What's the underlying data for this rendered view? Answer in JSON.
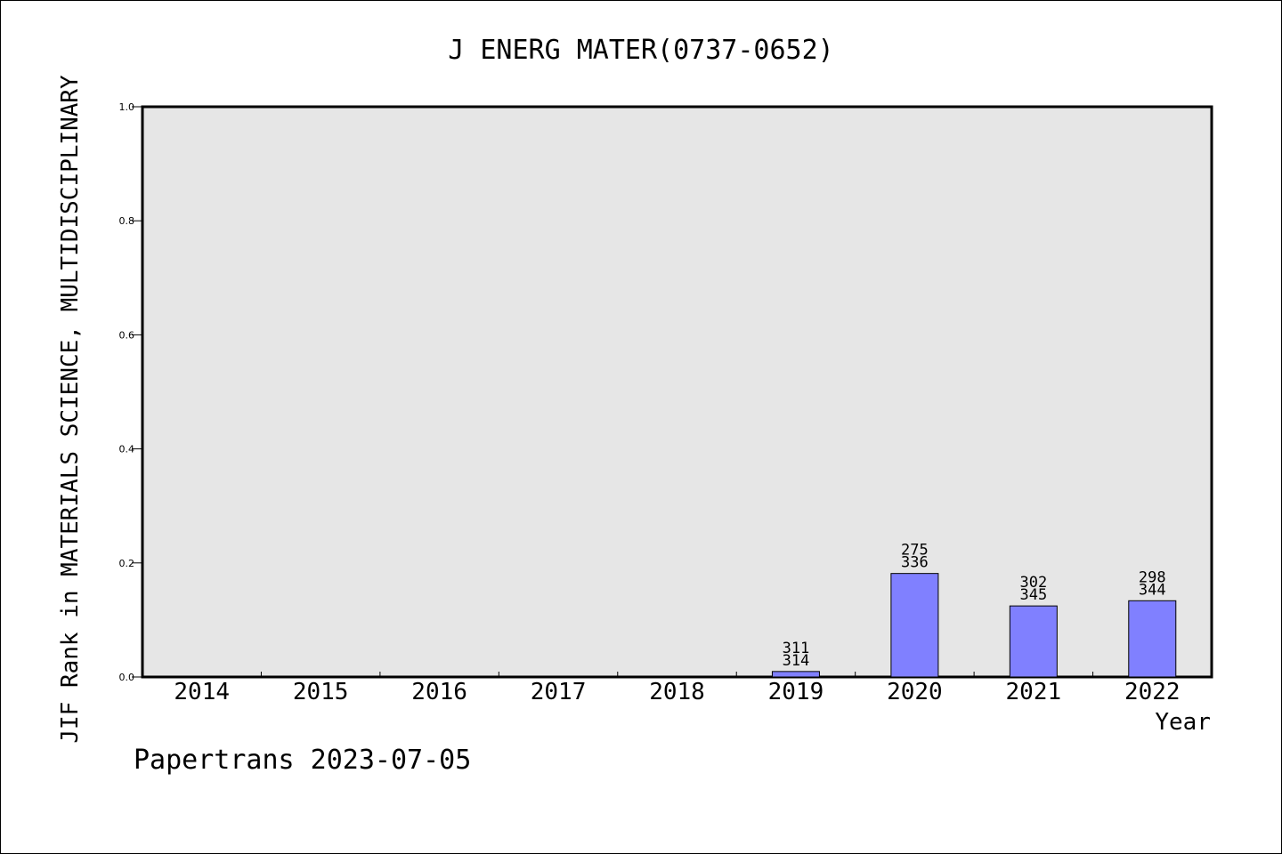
{
  "chart_data": {
    "type": "bar",
    "title": "J ENERG MATER(0737-0652)",
    "xlabel": "Year",
    "ylabel": "JIF Rank in MATERIALS SCIENCE, MULTIDISCIPLINARY",
    "footer": "Papertrans 2023-07-05",
    "categories": [
      "2014",
      "2015",
      "2016",
      "2017",
      "2018",
      "2019",
      "2020",
      "2021",
      "2022"
    ],
    "values": [
      null,
      null,
      null,
      null,
      null,
      0.0096,
      0.1815,
      0.1246,
      0.1337
    ],
    "data_labels": [
      null,
      null,
      null,
      null,
      null,
      {
        "rank": "311",
        "total": "314"
      },
      {
        "rank": "275",
        "total": "336"
      },
      {
        "rank": "302",
        "total": "345"
      },
      {
        "rank": "298",
        "total": "344"
      }
    ],
    "ylim": [
      0,
      1.0
    ],
    "yticks": [
      "0.0",
      "0.2",
      "0.4",
      "0.6",
      "0.8",
      "1.0"
    ],
    "grid": false,
    "colors": {
      "bar": "#8080ff",
      "plot_bg": "#e6e6e6",
      "axis": "#000000"
    }
  }
}
